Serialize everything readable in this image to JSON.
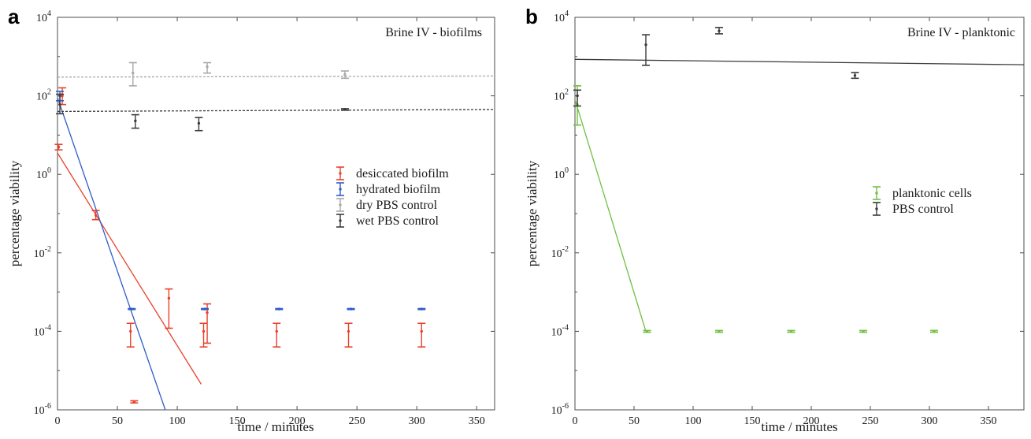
{
  "chart_data": [
    {
      "type": "scatter",
      "panel": "a",
      "title": "Brine IV - biofilms",
      "xlabel": "time / minutes",
      "ylabel": "percentage viability",
      "xlim": [
        0,
        365
      ],
      "ylim_log10": [
        -6,
        4
      ],
      "y_scale": "log",
      "x_ticks": [
        0,
        50,
        100,
        150,
        200,
        250,
        300,
        350
      ],
      "y_ticks": [
        {
          "base": "10",
          "exp": "4",
          "v": 4
        },
        {
          "base": "10",
          "exp": "2",
          "v": 2
        },
        {
          "base": "10",
          "exp": "0",
          "v": 0
        },
        {
          "base": "10",
          "exp": "-2",
          "v": -2
        },
        {
          "base": "10",
          "exp": "-4",
          "v": -4
        },
        {
          "base": "10",
          "exp": "-6",
          "v": -6
        }
      ],
      "legend_position": "right",
      "series": [
        {
          "name": "desiccated biofilm",
          "color": "#e8412a",
          "points": [
            {
              "x": 1,
              "y": 5,
              "lo": 4.2,
              "hi": 5.8
            },
            {
              "x": 4,
              "y": 100,
              "lo": 60,
              "hi": 160
            },
            {
              "x": 32,
              "y": 0.09,
              "lo": 0.07,
              "hi": 0.12
            },
            {
              "x": 61,
              "y": 0.0001,
              "lo": 4e-05,
              "hi": 0.00016
            },
            {
              "x": 64,
              "y": 1.6e-06,
              "lo": 1.5e-06,
              "hi": 1.7e-06
            },
            {
              "x": 93,
              "y": 0.0007,
              "lo": 0.00012,
              "hi": 0.0012
            },
            {
              "x": 122,
              "y": 0.0001,
              "lo": 4e-05,
              "hi": 0.00016
            },
            {
              "x": 125,
              "y": 0.0003,
              "lo": 5e-05,
              "hi": 0.0005
            },
            {
              "x": 183,
              "y": 0.0001,
              "lo": 4e-05,
              "hi": 0.00016
            },
            {
              "x": 243,
              "y": 0.0001,
              "lo": 4e-05,
              "hi": 0.00016
            },
            {
              "x": 304,
              "y": 0.0001,
              "lo": 4e-05,
              "hi": 0.00016
            }
          ],
          "fit": [
            {
              "x": 0,
              "y": 3.5
            },
            {
              "x": 120,
              "y": 4.5e-06
            }
          ]
        },
        {
          "name": "hydrated biofilm",
          "color": "#2e5cc6",
          "points": [
            {
              "x": 2,
              "y": 100,
              "lo": 75,
              "hi": 130
            },
            {
              "x": 62,
              "y": 0.00037,
              "lo": 0.00036,
              "hi": 0.00038
            },
            {
              "x": 123,
              "y": 0.00037,
              "lo": 0.00036,
              "hi": 0.00038
            },
            {
              "x": 185,
              "y": 0.00037,
              "lo": 0.00036,
              "hi": 0.00038
            },
            {
              "x": 245,
              "y": 0.00037,
              "lo": 0.00036,
              "hi": 0.00038
            },
            {
              "x": 304,
              "y": 0.00037,
              "lo": 0.00036,
              "hi": 0.00038
            }
          ],
          "fit": [
            {
              "x": 0,
              "y": 90
            },
            {
              "x": 90,
              "y": 1e-06
            }
          ]
        },
        {
          "name": "dry PBS control",
          "color": "#a8a8a8",
          "points": [
            {
              "x": 63,
              "y": 380,
              "lo": 180,
              "hi": 700
            },
            {
              "x": 125,
              "y": 550,
              "lo": 380,
              "hi": 700
            },
            {
              "x": 240,
              "y": 350,
              "lo": 280,
              "hi": 430
            }
          ],
          "fit": [
            {
              "x": 0,
              "y": 300
            },
            {
              "x": 365,
              "y": 320
            }
          ],
          "fit_style": "dashed"
        },
        {
          "name": "wet PBS control",
          "color": "#3a3a3a",
          "points": [
            {
              "x": 2,
              "y": 60,
              "lo": 35,
              "hi": 110
            },
            {
              "x": 65,
              "y": 23,
              "lo": 15,
              "hi": 33
            },
            {
              "x": 118,
              "y": 20,
              "lo": 13,
              "hi": 28
            },
            {
              "x": 240,
              "y": 45,
              "lo": 43,
              "hi": 47
            }
          ],
          "fit": [
            {
              "x": 0,
              "y": 40
            },
            {
              "x": 365,
              "y": 45
            }
          ],
          "fit_style": "dashed"
        }
      ]
    },
    {
      "type": "scatter",
      "panel": "b",
      "title": "Brine IV - planktonic",
      "xlabel": "time / minutes",
      "ylabel": "percentage viability",
      "xlim": [
        0,
        380
      ],
      "ylim_log10": [
        -6,
        4
      ],
      "y_scale": "log",
      "x_ticks": [
        0,
        50,
        100,
        150,
        200,
        250,
        300,
        350
      ],
      "y_ticks": [
        {
          "base": "10",
          "exp": "4",
          "v": 4
        },
        {
          "base": "10",
          "exp": "2",
          "v": 2
        },
        {
          "base": "10",
          "exp": "0",
          "v": 0
        },
        {
          "base": "10",
          "exp": "-2",
          "v": -2
        },
        {
          "base": "10",
          "exp": "-4",
          "v": -4
        },
        {
          "base": "10",
          "exp": "-6",
          "v": -6
        }
      ],
      "legend_position": "right",
      "series": [
        {
          "name": "planktonic cells",
          "color": "#6fbf3f",
          "points": [
            {
              "x": 2,
              "y": 60,
              "lo": 18,
              "hi": 180
            },
            {
              "x": 61,
              "y": 0.0001,
              "lo": 9.5e-05,
              "hi": 0.000105
            },
            {
              "x": 122,
              "y": 0.0001,
              "lo": 9.5e-05,
              "hi": 0.000105
            },
            {
              "x": 183,
              "y": 0.0001,
              "lo": 9.5e-05,
              "hi": 0.000105
            },
            {
              "x": 244,
              "y": 0.0001,
              "lo": 9.5e-05,
              "hi": 0.000105
            },
            {
              "x": 304,
              "y": 0.0001,
              "lo": 9.5e-05,
              "hi": 0.000105
            }
          ],
          "fit": [
            {
              "x": 0,
              "y": 80
            },
            {
              "x": 60,
              "y": 0.0001
            }
          ]
        },
        {
          "name": "PBS control",
          "color": "#3a3a3a",
          "points": [
            {
              "x": 2,
              "y": 100,
              "lo": 55,
              "hi": 140
            },
            {
              "x": 60,
              "y": 2000,
              "lo": 600,
              "hi": 3600
            },
            {
              "x": 122,
              "y": 4500,
              "lo": 3800,
              "hi": 5500
            },
            {
              "x": 237,
              "y": 330,
              "lo": 280,
              "hi": 390
            }
          ],
          "fit": [
            {
              "x": 0,
              "y": 850
            },
            {
              "x": 380,
              "y": 620
            }
          ]
        }
      ]
    }
  ]
}
